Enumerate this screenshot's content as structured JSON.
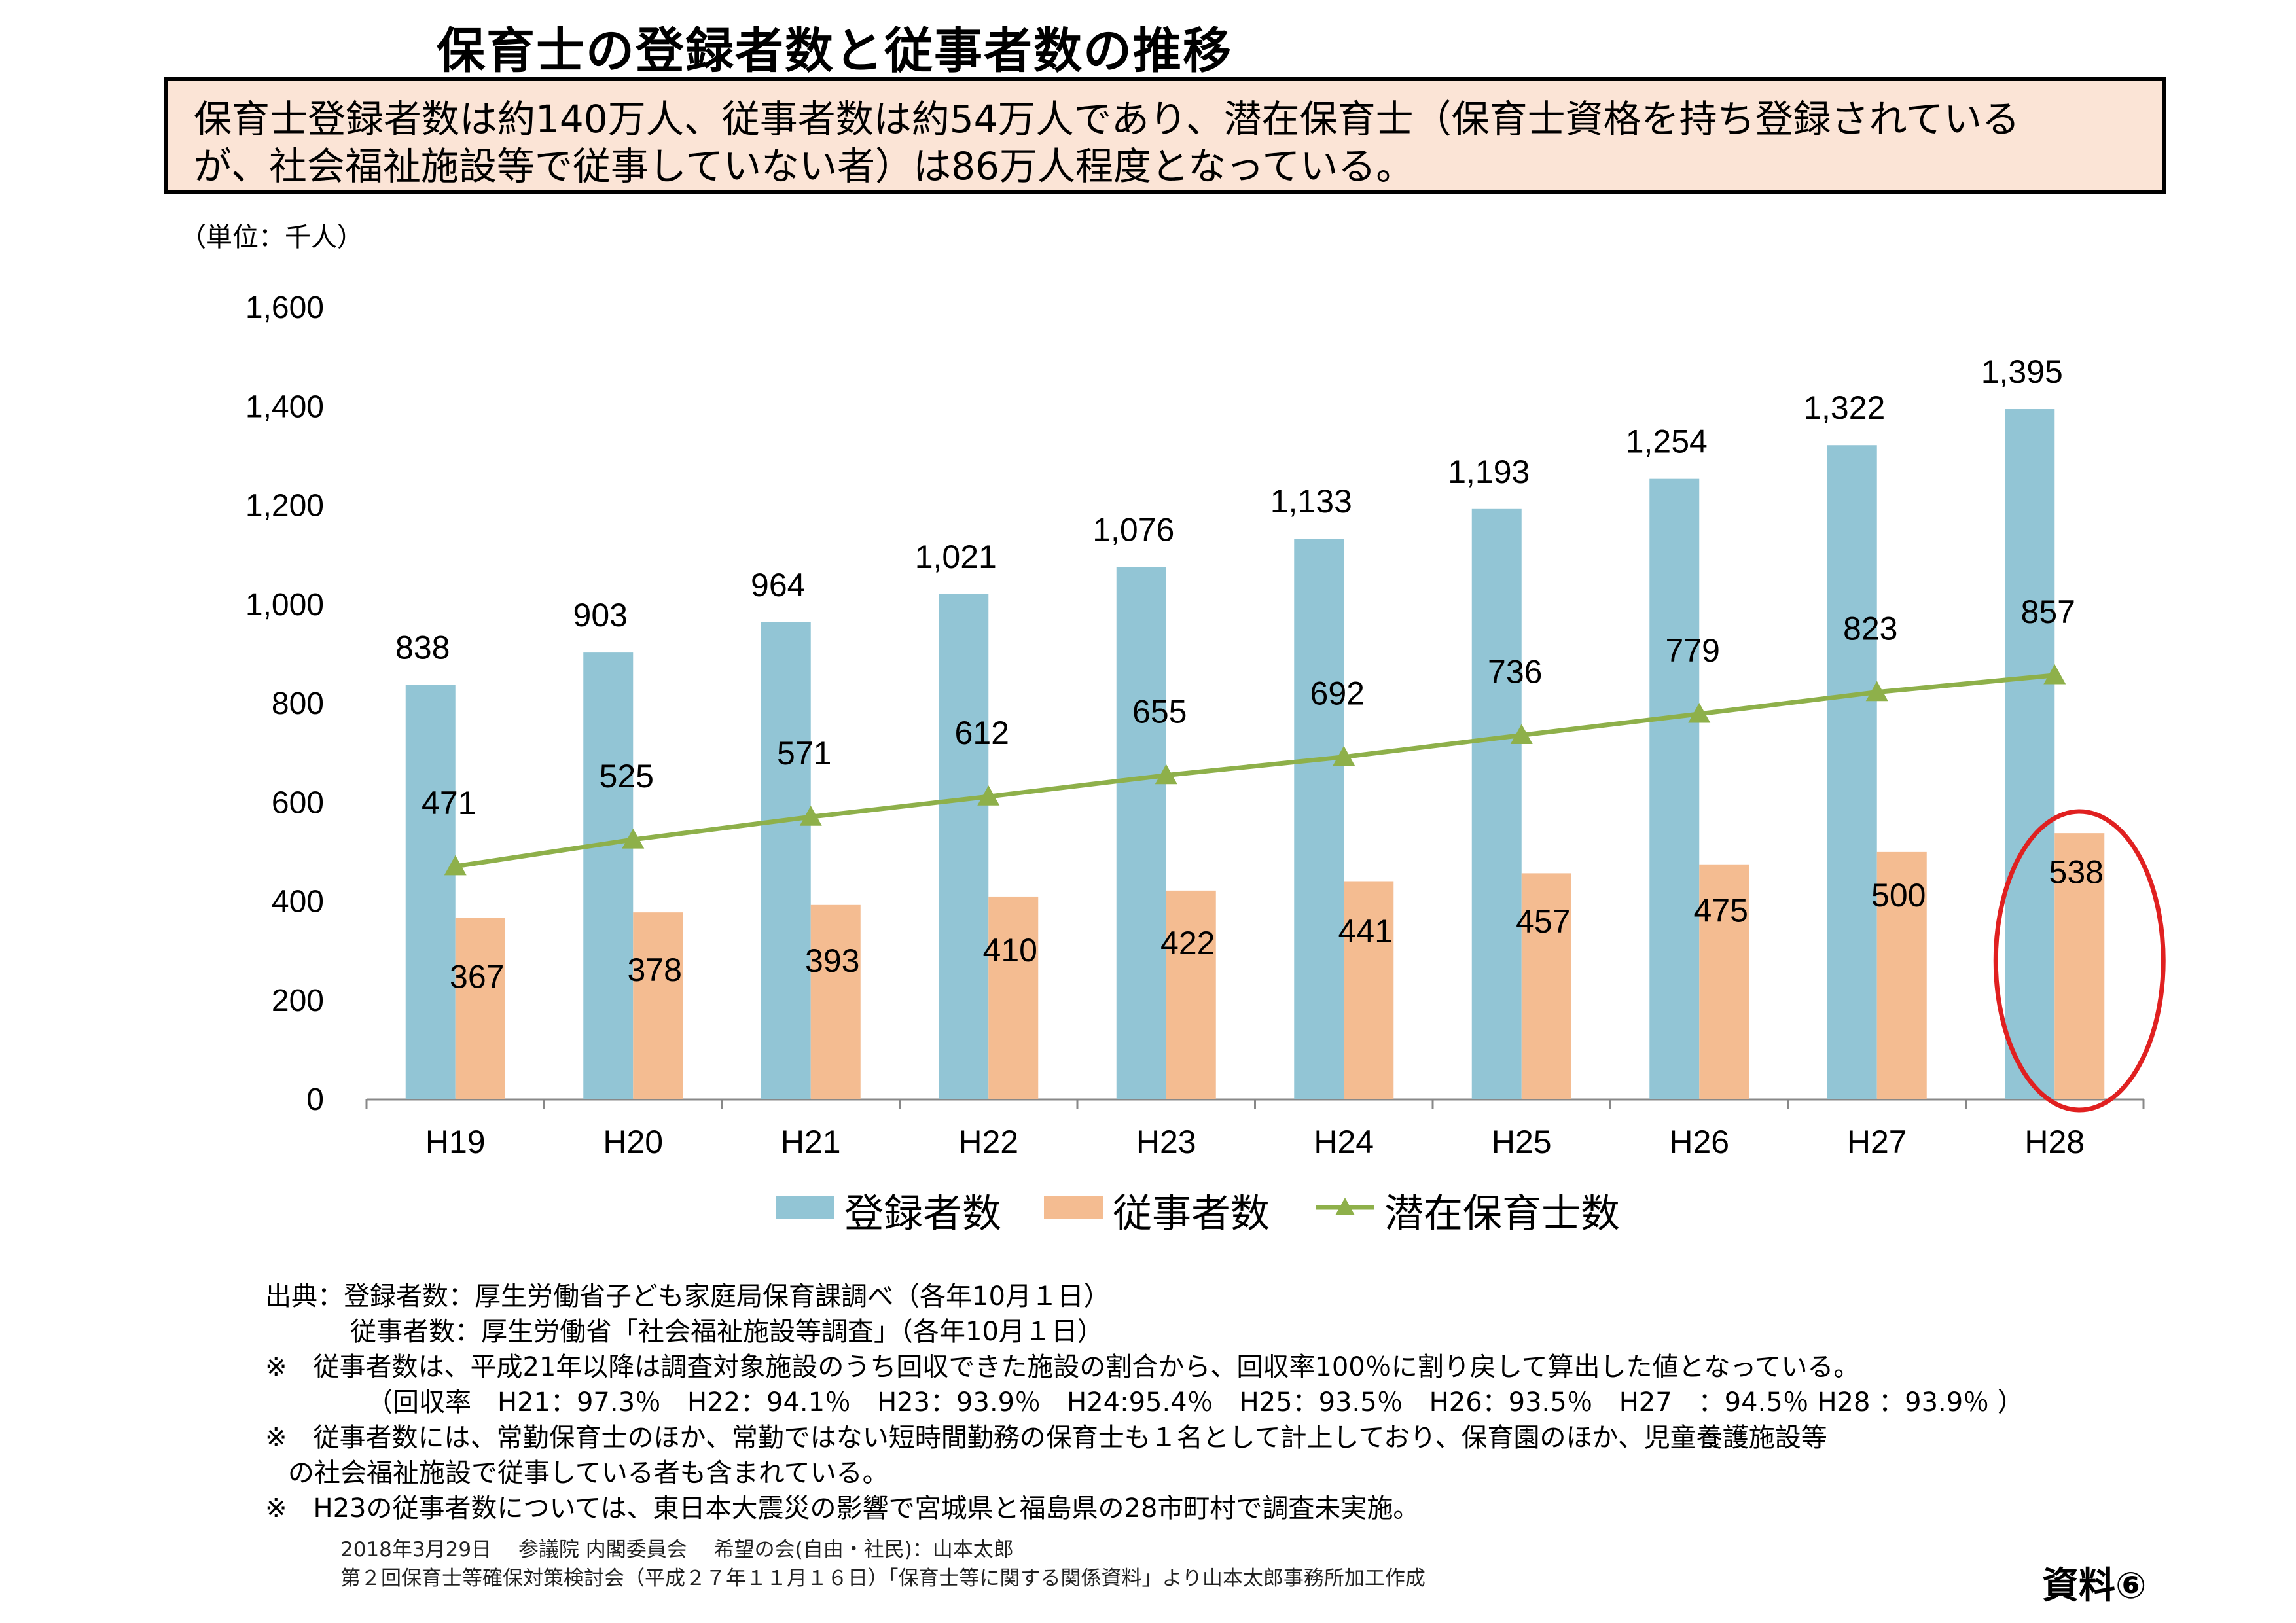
{
  "title": "保育士の登録者数と従事者数の推移",
  "summary": {
    "line1": "保育士登録者数は約140万人、従事者数は約54万人であり、潜在保育士（保育士資格を持ち登録されている",
    "line2": "が、社会福祉施設等で従事していない者）は86万人程度となっている。"
  },
  "unit_label": "（単位：千人）",
  "chart_data": {
    "type": "bar",
    "categories": [
      "H19",
      "H20",
      "H21",
      "H22",
      "H23",
      "H24",
      "H25",
      "H26",
      "H27",
      "H28"
    ],
    "ylim": [
      0,
      1600
    ],
    "yticks": [
      0,
      200,
      400,
      600,
      800,
      1000,
      1200,
      1400,
      1600
    ],
    "ytick_labels": [
      "0",
      "200",
      "400",
      "600",
      "800",
      "1,000",
      "1,200",
      "1,400",
      "1,600"
    ],
    "grid": false,
    "legend_position": "bottom",
    "series": [
      {
        "name": "登録者数",
        "kind": "bar",
        "color": "#92c5d5",
        "values": [
          838,
          903,
          964,
          1021,
          1076,
          1133,
          1193,
          1254,
          1322,
          1395
        ],
        "labels": [
          "838",
          "903",
          "964",
          "1,021",
          "1,076",
          "1,133",
          "1,193",
          "1,254",
          "1,322",
          "1,395"
        ]
      },
      {
        "name": "従事者数",
        "kind": "bar",
        "color": "#f4bc91",
        "values": [
          367,
          378,
          393,
          410,
          422,
          441,
          457,
          475,
          500,
          538
        ],
        "labels": [
          "367",
          "378",
          "393",
          "410",
          "422",
          "441",
          "457",
          "475",
          "500",
          "538"
        ]
      },
      {
        "name": "潜在保育士数",
        "kind": "line",
        "marker": "triangle",
        "color": "#8eb04a",
        "values": [
          471,
          525,
          571,
          612,
          655,
          692,
          736,
          779,
          823,
          857
        ],
        "labels": [
          "471",
          "525",
          "571",
          "612",
          "655",
          "692",
          "736",
          "779",
          "823",
          "857"
        ]
      }
    ],
    "highlight": {
      "category": "H28",
      "series": "従事者数",
      "color": "#e02020"
    }
  },
  "notes": {
    "n1": "出典：登録者数：厚生労働省子ども家庭局保育課調べ（各年10月１日）",
    "n2": "従事者数：厚生労働省「社会福祉施設等調査」（各年10月１日）",
    "n3": "※　従事者数は、平成21年以降は調査対象施設のうち回収できた施設の割合から、回収率100％に割り戻して算出した値となっている。",
    "n4": "（回収率　H21：97.3％　H22：94.1％　H23：93.9％　H24:95.4％　H25：93.5％　H26：93.5％　H27　：94.5％ H28 ：93.9％ ）",
    "n5": "※　従事者数には、常勤保育士のほか、常勤ではない短時間勤務の保育士も１名として計上しており、保育園のほか、児童養護施設等",
    "n6": "の社会福祉施設で従事している者も含まれている。",
    "n7": "※　H23の従事者数については、東日本大震災の影響で宮城県と福島県の28市町村で調査未実施。"
  },
  "footer": {
    "f1": "2018年3月29日　 参議院 内閣委員会　 希望の会(自由・社民)：山本太郎",
    "f2": "第２回保育士等確保対策検討会（平成２７年１１月１６日）「保育士等に関する関係資料」より山本太郎事務所加工作成"
  },
  "doc_label": "資料⑥"
}
